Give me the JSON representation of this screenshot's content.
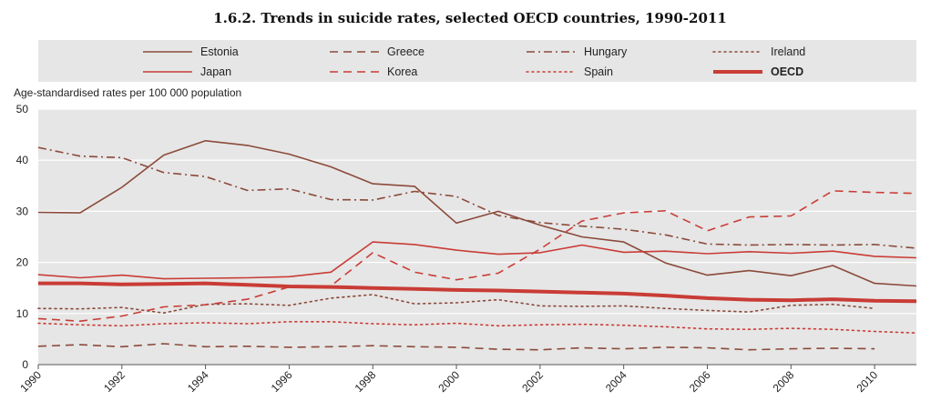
{
  "chart_data": {
    "type": "line",
    "title": "1.6.2.  Trends in suicide rates, selected OECD countries, 1990-2011",
    "ylabel": "Age-standardised rates per 100 000 population",
    "xlabel": "",
    "xlim": [
      1990,
      2011
    ],
    "ylim": [
      0,
      50
    ],
    "yticks": [
      0,
      10,
      20,
      30,
      40,
      50
    ],
    "xticks": [
      1990,
      1992,
      1994,
      1996,
      1998,
      2000,
      2002,
      2004,
      2006,
      2008,
      2010
    ],
    "grid": "horizontal",
    "legend_position": "top",
    "colors": {
      "dark": "#8b4a3a",
      "red": "#c93c36",
      "plot_bg": "#e6e6e6",
      "legend_bg": "#e6e6e6"
    },
    "series": [
      {
        "name": "Estonia",
        "style": "solid",
        "color": "#8b4a3a",
        "x": [
          1990,
          1991,
          1992,
          1993,
          1994,
          1995,
          1996,
          1997,
          1998,
          1999,
          2000,
          2001,
          2002,
          2003,
          2004,
          2005,
          2006,
          2007,
          2008,
          2009,
          2010,
          2011
        ],
        "values": [
          29.8,
          29.7,
          34.7,
          41.0,
          43.8,
          42.9,
          41.2,
          38.7,
          35.4,
          34.9,
          27.7,
          30.0,
          27.3,
          25.0,
          24.0,
          19.9,
          17.5,
          18.4,
          17.4,
          19.4,
          15.9,
          15.4
        ]
      },
      {
        "name": "Greece",
        "style": "longdash",
        "color": "#8b4a3a",
        "x": [
          1990,
          1991,
          1992,
          1993,
          1994,
          1995,
          1996,
          1997,
          1998,
          1999,
          2000,
          2001,
          2002,
          2003,
          2004,
          2005,
          2006,
          2007,
          2008,
          2009,
          2010
        ],
        "values": [
          3.6,
          3.9,
          3.5,
          4.1,
          3.5,
          3.6,
          3.4,
          3.5,
          3.7,
          3.5,
          3.4,
          3.0,
          2.9,
          3.3,
          3.1,
          3.4,
          3.3,
          2.9,
          3.1,
          3.2,
          3.1
        ]
      },
      {
        "name": "Hungary",
        "style": "dashdot",
        "color": "#8b4a3a",
        "x": [
          1990,
          1991,
          1992,
          1993,
          1994,
          1995,
          1996,
          1997,
          1998,
          1999,
          2000,
          2001,
          2002,
          2003,
          2004,
          2005,
          2006,
          2007,
          2008,
          2009,
          2010,
          2011
        ],
        "values": [
          42.5,
          40.8,
          40.5,
          37.6,
          36.8,
          34.1,
          34.4,
          32.3,
          32.2,
          33.9,
          32.9,
          29.2,
          27.8,
          27.1,
          26.5,
          25.4,
          23.6,
          23.4,
          23.5,
          23.4,
          23.5,
          22.8
        ]
      },
      {
        "name": "Ireland",
        "style": "dotted",
        "color": "#8b4a3a",
        "x": [
          1990,
          1991,
          1992,
          1993,
          1994,
          1995,
          1996,
          1997,
          1998,
          1999,
          2000,
          2001,
          2002,
          2003,
          2004,
          2005,
          2006,
          2007,
          2008,
          2009,
          2010
        ],
        "values": [
          11.0,
          10.9,
          11.2,
          10.1,
          11.8,
          11.9,
          11.6,
          13.0,
          13.7,
          11.9,
          12.1,
          12.7,
          11.5,
          11.4,
          11.5,
          11.0,
          10.6,
          10.3,
          11.6,
          11.8,
          11.0
        ]
      },
      {
        "name": "Japan",
        "style": "solid",
        "color": "#c93c36",
        "x": [
          1990,
          1991,
          1992,
          1993,
          1994,
          1995,
          1996,
          1997,
          1998,
          1999,
          2000,
          2001,
          2002,
          2003,
          2004,
          2005,
          2006,
          2007,
          2008,
          2009,
          2010,
          2011
        ],
        "values": [
          17.6,
          17.0,
          17.5,
          16.8,
          16.9,
          17.0,
          17.2,
          18.1,
          24.0,
          23.5,
          22.4,
          21.6,
          21.9,
          23.4,
          22.0,
          22.2,
          21.7,
          22.1,
          21.8,
          22.2,
          21.2,
          20.9
        ]
      },
      {
        "name": "Korea",
        "style": "longdash",
        "color": "#c93c36",
        "x": [
          1990,
          1991,
          1992,
          1993,
          1994,
          1995,
          1996,
          1997,
          1998,
          1999,
          2000,
          2001,
          2002,
          2003,
          2004,
          2005,
          2006,
          2007,
          2008,
          2009,
          2010,
          2011
        ],
        "values": [
          9.0,
          8.5,
          9.5,
          11.3,
          11.7,
          12.8,
          15.2,
          15.4,
          21.9,
          18.1,
          16.6,
          17.9,
          22.6,
          28.1,
          29.7,
          30.1,
          26.2,
          28.9,
          29.1,
          34.0,
          33.7,
          33.5
        ]
      },
      {
        "name": "Spain",
        "style": "dotted",
        "color": "#c93c36",
        "x": [
          1990,
          1991,
          1992,
          1993,
          1994,
          1995,
          1996,
          1997,
          1998,
          1999,
          2000,
          2001,
          2002,
          2003,
          2004,
          2005,
          2006,
          2007,
          2008,
          2009,
          2010,
          2011
        ],
        "values": [
          8.1,
          7.8,
          7.6,
          8.0,
          8.2,
          8.0,
          8.4,
          8.4,
          8.0,
          7.8,
          8.1,
          7.6,
          7.8,
          7.9,
          7.7,
          7.4,
          7.0,
          6.9,
          7.1,
          6.9,
          6.5,
          6.2
        ]
      },
      {
        "name": "OECD",
        "style": "thick",
        "color": "#c93c36",
        "x": [
          1990,
          1991,
          1992,
          1993,
          1994,
          1995,
          1996,
          1997,
          1998,
          1999,
          2000,
          2001,
          2002,
          2003,
          2004,
          2005,
          2006,
          2007,
          2008,
          2009,
          2010,
          2011
        ],
        "values": [
          15.9,
          15.9,
          15.7,
          15.8,
          15.9,
          15.6,
          15.3,
          15.2,
          15.0,
          14.8,
          14.6,
          14.5,
          14.3,
          14.1,
          13.9,
          13.5,
          13.0,
          12.7,
          12.6,
          12.8,
          12.5,
          12.4
        ]
      }
    ]
  }
}
